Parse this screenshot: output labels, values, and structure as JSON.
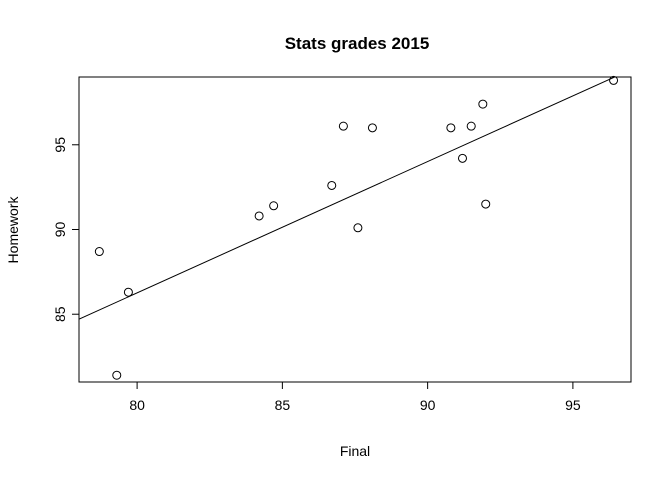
{
  "chart_data": {
    "type": "scatter",
    "title": "Stats grades 2015",
    "xlabel": "Final",
    "ylabel": "Homework",
    "xlim": [
      78,
      97
    ],
    "ylim": [
      81,
      99
    ],
    "x_ticks": [
      80,
      85,
      90,
      95
    ],
    "y_ticks": [
      85,
      90,
      95
    ],
    "grid": false,
    "series": [
      {
        "points": [
          {
            "x": 78.7,
            "y": 88.7
          },
          {
            "x": 79.3,
            "y": 81.4
          },
          {
            "x": 79.7,
            "y": 86.3
          },
          {
            "x": 84.2,
            "y": 90.8
          },
          {
            "x": 84.7,
            "y": 91.4
          },
          {
            "x": 86.7,
            "y": 92.6
          },
          {
            "x": 87.1,
            "y": 96.1
          },
          {
            "x": 87.6,
            "y": 90.1
          },
          {
            "x": 88.1,
            "y": 96.0
          },
          {
            "x": 90.8,
            "y": 96.0
          },
          {
            "x": 91.2,
            "y": 94.2
          },
          {
            "x": 91.5,
            "y": 96.1
          },
          {
            "x": 91.9,
            "y": 97.4
          },
          {
            "x": 92.0,
            "y": 91.5
          },
          {
            "x": 96.4,
            "y": 98.8
          }
        ]
      }
    ],
    "regression_line": {
      "intercept": 24.26,
      "slope": 0.775
    }
  }
}
